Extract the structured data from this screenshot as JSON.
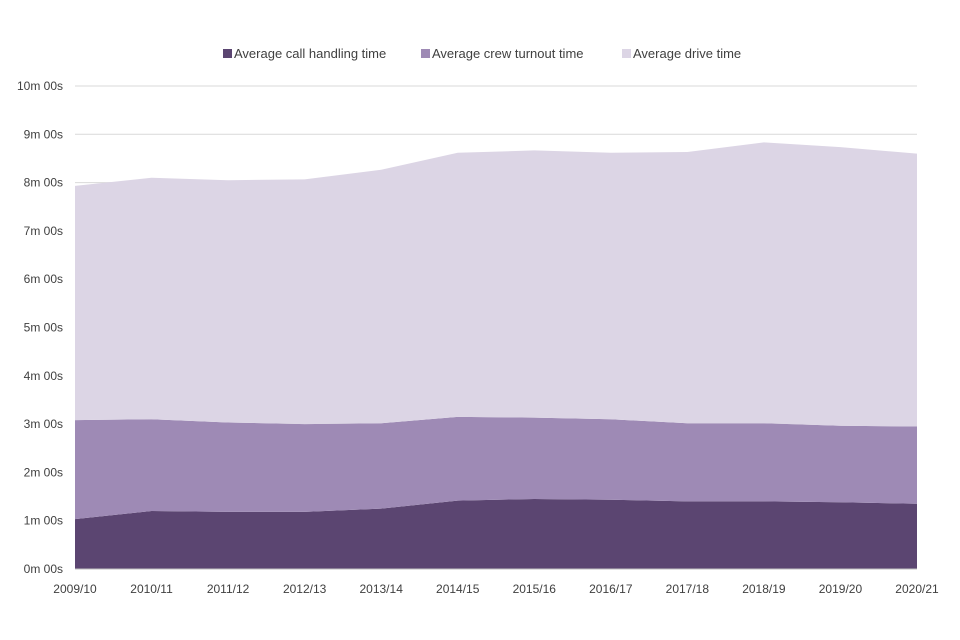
{
  "chart_data": {
    "type": "area",
    "stacked": true,
    "title": "",
    "xlabel": "",
    "ylabel": "",
    "categories": [
      "2009/10",
      "2010/11",
      "2011/12",
      "2012/13",
      "2013/14",
      "2014/15",
      "2015/16",
      "2016/17",
      "2017/18",
      "2018/19",
      "2019/20",
      "2020/21"
    ],
    "ylim_seconds": [
      0,
      600
    ],
    "y_ticks": [
      "0m 00s",
      "1m 00s",
      "2m 00s",
      "3m 00s",
      "4m 00s",
      "5m 00s",
      "6m 00s",
      "7m 00s",
      "8m 00s",
      "9m 00s",
      "10m 00s"
    ],
    "grid": true,
    "legend_position": "top",
    "series": [
      {
        "name": "Average call handling time",
        "color": "#5b4571",
        "values_seconds": [
          62,
          72,
          71,
          71,
          75,
          85,
          87,
          86,
          84,
          84,
          83,
          81
        ]
      },
      {
        "name": "Average crew turnout time",
        "color": "#9e8ab5",
        "values_seconds": [
          123,
          114,
          111,
          109,
          106,
          104,
          101,
          100,
          97,
          97,
          95,
          96
        ]
      },
      {
        "name": "Average drive time",
        "color": "#dcd5e5",
        "values_seconds": [
          291,
          300,
          301,
          304,
          315,
          328,
          332,
          331,
          337,
          349,
          346,
          339
        ]
      }
    ]
  }
}
